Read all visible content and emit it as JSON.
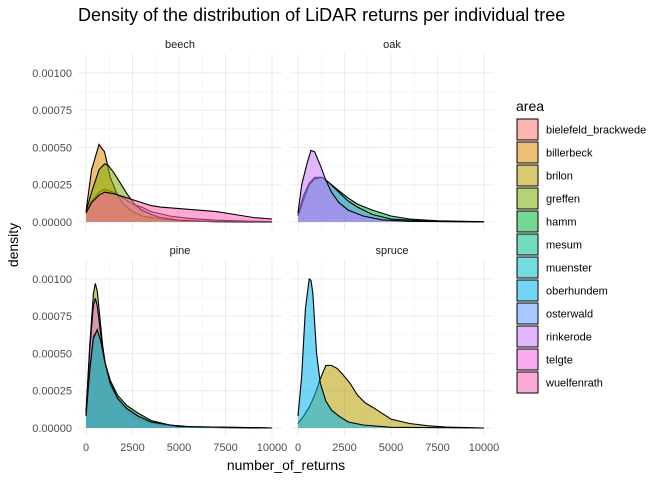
{
  "chart_data": {
    "type": "area",
    "title": "Density of the distribution of LiDAR returns per individual tree",
    "xlabel": "number_of_returns",
    "ylabel": "density",
    "xlim": [
      0,
      10000
    ],
    "ylim": [
      0,
      0.0011
    ],
    "x_ticks": [
      0,
      2500,
      5000,
      7500,
      10000
    ],
    "x_tick_labels": [
      "0",
      "2500",
      "5000",
      "7500",
      "10000"
    ],
    "y_ticks": [
      0,
      0.00025,
      0.0005,
      0.00075,
      0.001
    ],
    "y_tick_labels": [
      "0.00000",
      "0.00025",
      "0.00050",
      "0.00075",
      "0.00100"
    ],
    "grid": true,
    "legend": {
      "title": "area",
      "position": "right",
      "entries": [
        {
          "name": "bielefeld_brackwede",
          "color": "#F8766D"
        },
        {
          "name": "billerbeck",
          "color": "#DE8C00"
        },
        {
          "name": "brilon",
          "color": "#B79F00"
        },
        {
          "name": "greffen",
          "color": "#7CAE00"
        },
        {
          "name": "hamm",
          "color": "#00BA38"
        },
        {
          "name": "mesum",
          "color": "#00C08B"
        },
        {
          "name": "muenster",
          "color": "#00BFC4"
        },
        {
          "name": "oberhundem",
          "color": "#00B4F0"
        },
        {
          "name": "osterwald",
          "color": "#619CFF"
        },
        {
          "name": "rinkerode",
          "color": "#C77CFF"
        },
        {
          "name": "telgte",
          "color": "#F564E3"
        },
        {
          "name": "wuelfenrath",
          "color": "#FF64B0"
        }
      ]
    },
    "facets": [
      {
        "name": "beech",
        "series": [
          {
            "area": "bielefeld_brackwede",
            "x": [
              0,
              300,
              700,
              1000,
              1500,
              2000,
              2500,
              3000,
              3500,
              4500,
              5500,
              7000,
              9000,
              10000
            ],
            "y": [
              6e-05,
              0.00014,
              0.0002,
              0.00022,
              0.0002,
              0.00016,
              0.00012,
              0.0001,
              7e-05,
              4e-05,
              2.5e-05,
              1.2e-05,
              5e-06,
              3e-06
            ]
          },
          {
            "area": "billerbeck",
            "x": [
              0,
              300,
              700,
              1000,
              1300,
              1700,
              2000,
              2500,
              3000,
              4000,
              5000,
              7000,
              10000
            ],
            "y": [
              7e-05,
              0.00035,
              0.00052,
              0.00047,
              0.0003,
              0.00018,
              0.00012,
              7e-05,
              4e-05,
              2e-05,
              8e-06,
              2e-06,
              0
            ]
          },
          {
            "area": "greffen",
            "x": [
              0,
              300,
              700,
              1000,
              1200,
              1500,
              1800,
              2200,
              2600,
              3000,
              3500,
              4000,
              5000,
              7000,
              10000
            ],
            "y": [
              7e-05,
              0.0002,
              0.00035,
              0.00039,
              0.00038,
              0.00033,
              0.00027,
              0.00019,
              0.00012,
              8e-05,
              5e-05,
              3e-05,
              1.2e-05,
              3e-06,
              0
            ]
          },
          {
            "area": "wuelfenrath",
            "x": [
              0,
              300,
              700,
              1000,
              1500,
              2000,
              2500,
              3000,
              3500,
              4000,
              5000,
              6000,
              7000,
              8000,
              9000,
              10000
            ],
            "y": [
              6e-05,
              0.00013,
              0.00018,
              0.0002,
              0.00019,
              0.00017,
              0.00015,
              0.00013,
              0.00011,
              0.0001,
              9e-05,
              8e-05,
              7e-05,
              5e-05,
              3e-05,
              2e-05
            ]
          }
        ]
      },
      {
        "name": "oak",
        "series": [
          {
            "area": "hamm",
            "x": [
              0,
              300,
              600,
              900,
              1300,
              1700,
              2200,
              2700,
              3200,
              4000,
              5000,
              6000,
              7500,
              10000
            ],
            "y": [
              5e-05,
              0.00018,
              0.00026,
              0.0003,
              0.0003,
              0.00026,
              0.00021,
              0.00016,
              0.00012,
              8e-05,
              4e-05,
              2e-05,
              8e-06,
              2e-06
            ]
          },
          {
            "area": "osterwald",
            "x": [
              0,
              300,
              600,
              900,
              1300,
              1700,
              2200,
              2700,
              3200,
              4000,
              5000,
              7000,
              10000
            ],
            "y": [
              4e-05,
              0.00015,
              0.00025,
              0.00029,
              0.0003,
              0.00026,
              0.0002,
              0.00014,
              0.0001,
              5e-05,
              2e-05,
              5e-06,
              0
            ]
          },
          {
            "area": "rinkerode",
            "x": [
              0,
              200,
              500,
              700,
              900,
              1200,
              1500,
              1800,
              2200,
              2700,
              3500,
              4500,
              6000,
              10000
            ],
            "y": [
              6e-05,
              0.00025,
              0.0004,
              0.00048,
              0.00047,
              0.00038,
              0.00028,
              0.0002,
              0.00013,
              8e-05,
              4e-05,
              1.5e-05,
              5e-06,
              0
            ]
          }
        ]
      },
      {
        "name": "pine",
        "series": [
          {
            "area": "greffen",
            "x": [
              0,
              200,
              400,
              500,
              600,
              700,
              900,
              1100,
              1400,
              1800,
              2300,
              3000,
              4000,
              6000,
              10000
            ],
            "y": [
              0.0001,
              0.00055,
              0.0009,
              0.00097,
              0.00092,
              0.0008,
              0.00055,
              0.00038,
              0.00026,
              0.00017,
              0.0001,
              5e-05,
              2e-05,
              5e-06,
              0
            ]
          },
          {
            "area": "hamm",
            "x": [
              0,
              200,
              400,
              600,
              800,
              1000,
              1300,
              1700,
              2200,
              2800,
              3500,
              4500,
              6000,
              10000
            ],
            "y": [
              8e-05,
              0.0004,
              0.00062,
              0.00065,
              0.00058,
              0.00045,
              0.00032,
              0.00022,
              0.00015,
              0.0001,
              5e-05,
              2e-05,
              5e-06,
              0
            ]
          },
          {
            "area": "telgte",
            "x": [
              0,
              200,
              400,
              500,
              600,
              800,
              1000,
              1300,
              1700,
              2200,
              2800,
              3500,
              5000,
              10000
            ],
            "y": [
              0.0001,
              0.00052,
              0.00082,
              0.00087,
              0.00082,
              0.00062,
              0.00045,
              0.0003,
              0.0002,
              0.00013,
              8e-05,
              4e-05,
              1e-05,
              0
            ]
          },
          {
            "area": "muenster",
            "x": [
              0,
              200,
              400,
              600,
              800,
              1000,
              1300,
              1700,
              2200,
              2800,
              3500,
              5000,
              10000
            ],
            "y": [
              8e-05,
              0.00038,
              0.0006,
              0.00066,
              0.00058,
              0.00045,
              0.0003,
              0.0002,
              0.00013,
              8e-05,
              4e-05,
              1e-05,
              0
            ]
          }
        ]
      },
      {
        "name": "spruce",
        "series": [
          {
            "area": "brilon",
            "x": [
              0,
              300,
              600,
              900,
              1200,
              1500,
              1800,
              2100,
              2400,
              2800,
              3200,
              3600,
              4000,
              4500,
              5000,
              6000,
              7000,
              8000,
              10000
            ],
            "y": [
              3e-05,
              8e-05,
              0.00014,
              0.00022,
              0.00033,
              0.00042,
              0.00042,
              0.0004,
              0.00036,
              0.0003,
              0.00022,
              0.00017,
              0.00014,
              0.0001,
              6e-05,
              3e-05,
              1.5e-05,
              6e-06,
              0
            ]
          },
          {
            "area": "oberhundem",
            "x": [
              0,
              200,
              400,
              600,
              700,
              800,
              900,
              1000,
              1200,
              1500,
              1800,
              2200,
              2700,
              3500,
              5000,
              10000
            ],
            "y": [
              8e-05,
              0.00035,
              0.0008,
              0.001,
              0.00099,
              0.0009,
              0.0007,
              0.0005,
              0.0003,
              0.00018,
              0.00012,
              8e-05,
              4e-05,
              2e-05,
              5e-06,
              0
            ]
          }
        ]
      }
    ]
  }
}
